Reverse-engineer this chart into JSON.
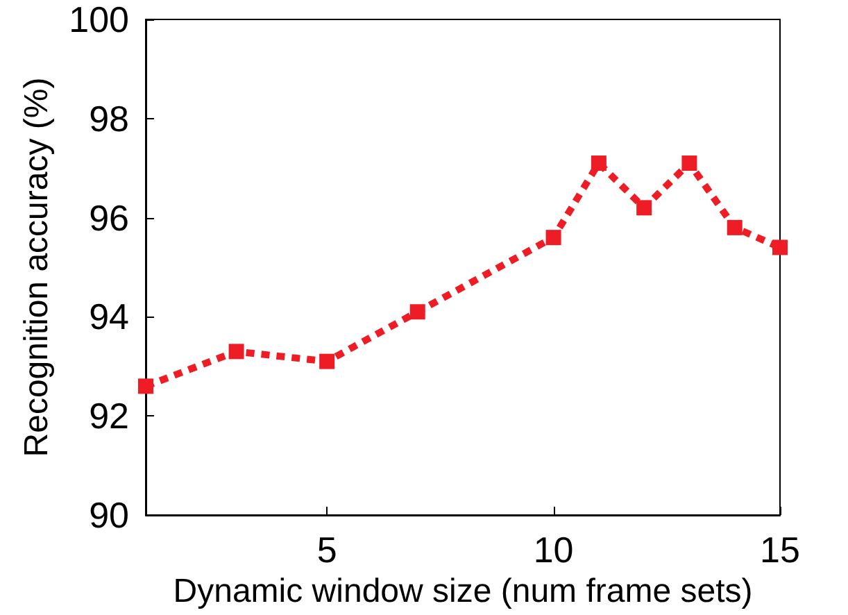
{
  "chart_data": {
    "type": "line",
    "xlabel": "Dynamic window size (num frame sets)",
    "ylabel": "Recognition accuracy (%)",
    "x": [
      1,
      3,
      5,
      7,
      10,
      11,
      12,
      13,
      14,
      15
    ],
    "series": [
      {
        "color": "#ee1c25",
        "values": [
          92.6,
          93.3,
          93.1,
          94.1,
          95.6,
          97.1,
          96.2,
          97.1,
          95.8,
          95.4
        ]
      }
    ],
    "xlim": [
      1,
      15
    ],
    "xticks": [
      5,
      10,
      15
    ],
    "ylim": [
      90,
      100
    ],
    "yticks": [
      90,
      92,
      94,
      96,
      98,
      100
    ],
    "grid": false,
    "marker": "square",
    "line_style": "dotted"
  }
}
